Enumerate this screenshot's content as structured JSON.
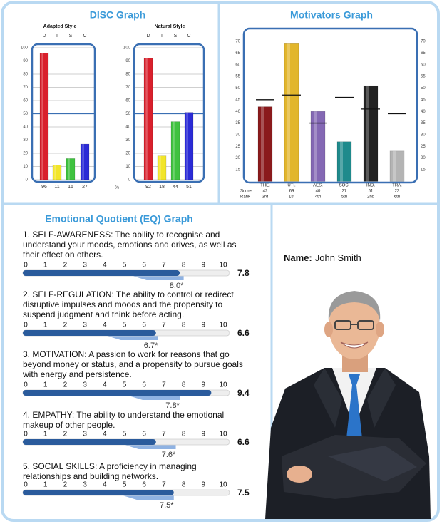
{
  "chart_data": [
    {
      "type": "bar",
      "title": "DISC Graph",
      "subtitle": "Adapted Style",
      "categories": [
        "D",
        "I",
        "S",
        "C"
      ],
      "values": [
        96,
        11,
        16,
        27
      ],
      "colors": [
        "#d9202c",
        "#f2e52a",
        "#3fc23f",
        "#2b2bd6"
      ],
      "ylim": [
        0,
        100
      ],
      "yticks": [
        0,
        10,
        20,
        30,
        40,
        50,
        60,
        70,
        80,
        90,
        100
      ],
      "grid": true,
      "midline": 50
    },
    {
      "type": "bar",
      "subtitle": "Natural Style",
      "unit_label": "%",
      "categories": [
        "D",
        "I",
        "S",
        "C"
      ],
      "values": [
        92,
        18,
        44,
        51
      ],
      "colors": [
        "#d9202c",
        "#f2e52a",
        "#3fc23f",
        "#2b2bd6"
      ],
      "ylim": [
        0,
        100
      ],
      "yticks": [
        0,
        10,
        20,
        30,
        40,
        50,
        60,
        70,
        80,
        90,
        100
      ],
      "grid": true,
      "midline": 50
    },
    {
      "type": "bar",
      "title": "Motivators Graph",
      "categories": [
        "THE.",
        "UTI.",
        "AES.",
        "SOC.",
        "IND.",
        "TRA."
      ],
      "values": [
        42,
        69,
        40,
        27,
        51,
        23
      ],
      "ranks": [
        "3rd",
        "1st",
        "4th",
        "5th",
        "2nd",
        "6th"
      ],
      "row_labels": [
        "Score",
        "Rank"
      ],
      "marker_values": [
        45,
        47,
        35,
        46,
        41,
        39
      ],
      "colors": [
        "#8a1a1c",
        "#e2b62c",
        "#8468b4",
        "#1f8a8c",
        "#222222",
        "#b4b4b4"
      ],
      "ylim": [
        10,
        75
      ],
      "yticks": [
        15,
        20,
        25,
        30,
        35,
        40,
        45,
        50,
        55,
        60,
        65,
        70
      ],
      "right_axis": true
    },
    {
      "type": "gauge",
      "title": "Emotional Quotient (EQ) Graph",
      "xlim": [
        0,
        10
      ],
      "xticks": [
        0,
        1,
        2,
        3,
        4,
        5,
        6,
        7,
        8,
        9,
        10
      ],
      "items": [
        {
          "text": "1. SELF-AWARENESS: The ability to recognise and understand your moods, emotions and drives, as well as their effect on others.",
          "value": 7.8,
          "benchmark": 8.0,
          "benchmark_label": "8.0*"
        },
        {
          "text": "2. SELF-REGULATION: The ability to control or redirect disruptive impulses and moods and the propensity to suspend judgment and think before acting.",
          "value": 6.6,
          "benchmark": 6.7,
          "benchmark_label": "6.7*"
        },
        {
          "text": "3. MOTIVATION: A passion to work for reasons that go beyond money or status, and a propensity to pursue goals with energy and persistence.",
          "value": 9.4,
          "benchmark": 7.8,
          "benchmark_label": "7.8*"
        },
        {
          "text": "4. EMPATHY: The ability to understand the emotional makeup of other people.",
          "value": 6.6,
          "benchmark": 7.6,
          "benchmark_label": "7.6*"
        },
        {
          "text": "5. SOCIAL SKILLS: A proficiency in managing relationships and building networks.",
          "value": 7.5,
          "benchmark": 7.5,
          "benchmark_label": "7.5*"
        }
      ]
    }
  ],
  "profile": {
    "name_label": "Name:",
    "name": "John Smith"
  }
}
